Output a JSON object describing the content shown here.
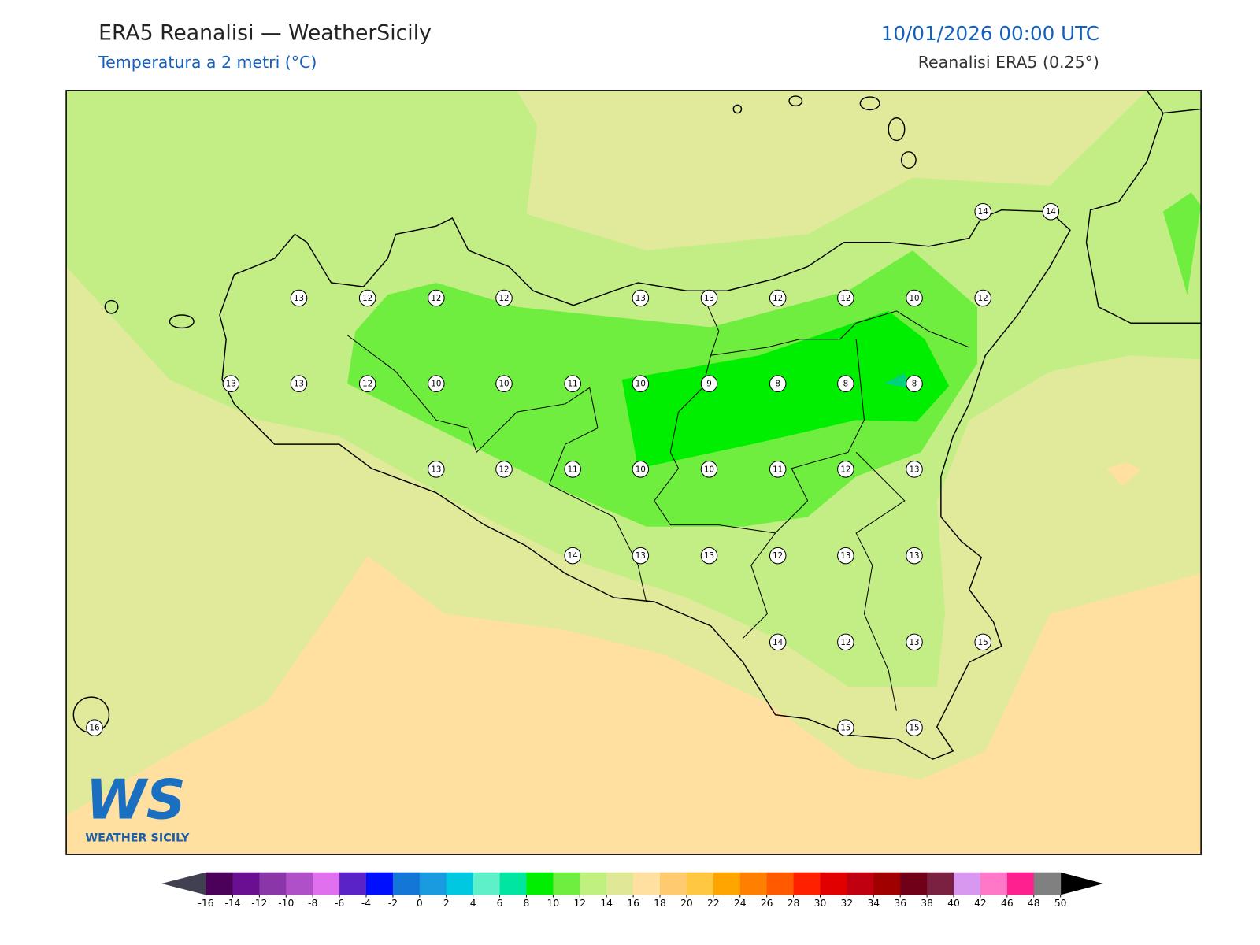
{
  "header": {
    "title": "ERA5 Reanalisi — WeatherSicily",
    "subtitle": "Temperatura a 2 metri (°C)",
    "datetime": "10/01/2026 00:00 UTC",
    "source": "Reanalisi ERA5 (0.25°)"
  },
  "map": {
    "stations": [
      14,
      14,
      13,
      12,
      12,
      12,
      13,
      13,
      12,
      12,
      10,
      12,
      13,
      13,
      12,
      10,
      10,
      11,
      10,
      9,
      8,
      8,
      8,
      13,
      12,
      11,
      10,
      10,
      11,
      12,
      13,
      14,
      13,
      13,
      12,
      13,
      13,
      14,
      12,
      13,
      15,
      16,
      15,
      15
    ]
  },
  "logo": {
    "mark": "WS",
    "name": "WEATHER SICILY"
  },
  "colorbar": {
    "ticks": [
      -16,
      -14,
      -12,
      -10,
      -8,
      -6,
      -4,
      -2,
      0,
      2,
      4,
      6,
      8,
      10,
      12,
      14,
      16,
      18,
      20,
      22,
      24,
      26,
      28,
      30,
      32,
      34,
      36,
      38,
      40,
      42,
      46,
      48,
      50
    ],
    "colors": [
      "#4b0059",
      "#6a0f8f",
      "#8a35a8",
      "#b050c8",
      "#e070ee",
      "#5a23c8",
      "#0010ff",
      "#1476d6",
      "#1a9be0",
      "#00c8e0",
      "#5ef0c8",
      "#00e6a0",
      "#00ee00",
      "#70ee40",
      "#c0f080",
      "#e0e898",
      "#ffe0a0",
      "#ffca70",
      "#ffc840",
      "#ffa500",
      "#ff8000",
      "#ff5a00",
      "#ff2000",
      "#e00000",
      "#c00010",
      "#a00000",
      "#700018",
      "#7a2040",
      "#d898f0",
      "#ff78c8",
      "#ff2090",
      "#808080"
    ],
    "under_color": "#404050",
    "over_color": "#000000"
  }
}
